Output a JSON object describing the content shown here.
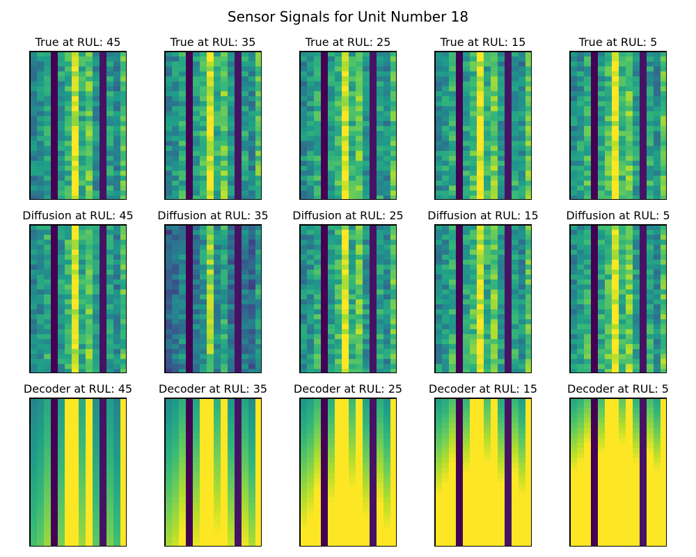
{
  "chart_data": {
    "type": "heatmap",
    "title": "Sensor Signals for Unit Number 18",
    "colormap": "viridis",
    "grid_layout": {
      "rows": 3,
      "cols": 5
    },
    "row_sources": [
      "True",
      "Diffusion",
      "Decoder"
    ],
    "rul_values": [
      45,
      35,
      25,
      15,
      5
    ],
    "cells_shape": {
      "time_steps": 30,
      "sensors": 14
    },
    "panels": [
      {
        "title": "True at RUL: 45",
        "source": "True",
        "rul": 45
      },
      {
        "title": "True at RUL: 35",
        "source": "True",
        "rul": 35
      },
      {
        "title": "True at RUL: 25",
        "source": "True",
        "rul": 25
      },
      {
        "title": "True at RUL: 15",
        "source": "True",
        "rul": 15
      },
      {
        "title": "True at RUL: 5",
        "source": "True",
        "rul": 5
      },
      {
        "title": "Diffusion at RUL: 45",
        "source": "Diffusion",
        "rul": 45
      },
      {
        "title": "Diffusion at RUL: 35",
        "source": "Diffusion",
        "rul": 35
      },
      {
        "title": "Diffusion at RUL: 25",
        "source": "Diffusion",
        "rul": 25
      },
      {
        "title": "Diffusion at RUL: 15",
        "source": "Diffusion",
        "rul": 15
      },
      {
        "title": "Diffusion at RUL: 5",
        "source": "Diffusion",
        "rul": 5
      },
      {
        "title": "Decoder at RUL: 45",
        "source": "Decoder",
        "rul": 45
      },
      {
        "title": "Decoder at RUL: 35",
        "source": "Decoder",
        "rul": 35
      },
      {
        "title": "Decoder at RUL: 25",
        "source": "Decoder",
        "rul": 25
      },
      {
        "title": "Decoder at RUL: 15",
        "source": "Decoder",
        "rul": 15
      },
      {
        "title": "Decoder at RUL: 5",
        "source": "Decoder",
        "rul": 5
      }
    ],
    "sensor_base_levels": [
      0.45,
      0.5,
      0.6,
      0.0,
      0.55,
      0.65,
      0.95,
      0.6,
      0.75,
      0.5,
      0.05,
      0.55,
      0.45,
      0.7
    ],
    "xlabel": "",
    "ylabel": "",
    "axes_ticks": "hidden"
  }
}
